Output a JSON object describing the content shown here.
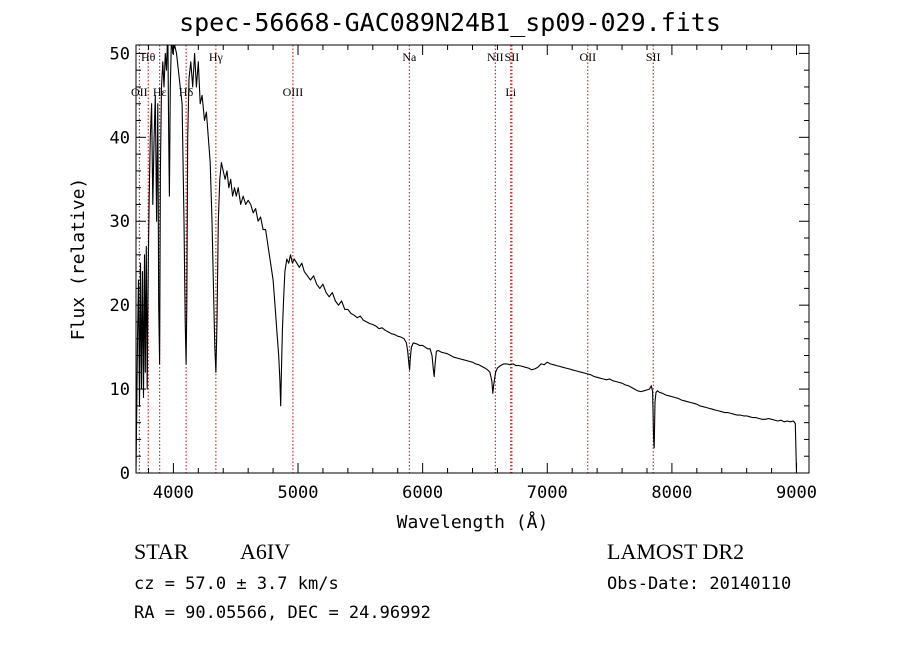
{
  "header": {
    "title": "spec-56668-GAC089N24B1_sp09-029.fits"
  },
  "info": {
    "object_class": "STAR",
    "subclass": "A6IV",
    "survey": "LAMOST DR2",
    "velocity": "cz = 57.0 ± 3.7 km/s",
    "obs_date": "Obs-Date: 20140110",
    "coords": "RA =  90.05566, DEC =  24.96992"
  },
  "chart_data": {
    "type": "line",
    "title": "spec-56668-GAC089N24B1_sp09-029.fits",
    "xlabel": "Wavelength (Å)",
    "ylabel": "Flux (relative)",
    "xlim": [
      3700,
      9100
    ],
    "ylim": [
      0,
      51
    ],
    "xticks": [
      4000,
      5000,
      6000,
      7000,
      8000,
      9000
    ],
    "yticks": [
      0,
      10,
      20,
      30,
      40,
      50
    ],
    "grid": false,
    "line_color": "#000000",
    "marker_color": "#cc0000",
    "spectral_lines": [
      {
        "label": "Hθ",
        "wavelength": 3798,
        "row": "top"
      },
      {
        "label": "OII",
        "wavelength": 3727,
        "row": "middle"
      },
      {
        "label": "Hε",
        "wavelength": 3890,
        "row": "middle"
      },
      {
        "label": "Hδ",
        "wavelength": 4102,
        "row": "middle"
      },
      {
        "label": "Hγ",
        "wavelength": 4341,
        "row": "top"
      },
      {
        "label": "OIII",
        "wavelength": 4959,
        "row": "middle"
      },
      {
        "label": "Na",
        "wavelength": 5893,
        "row": "top"
      },
      {
        "label": "NII",
        "wavelength": 6583,
        "row": "top"
      },
      {
        "label": "SII",
        "wavelength": 6716,
        "row": "top"
      },
      {
        "label": "Li",
        "wavelength": 6707,
        "row": "middle"
      },
      {
        "label": "OII",
        "wavelength": 7325,
        "row": "top"
      },
      {
        "label": "SII",
        "wavelength": 7850,
        "row": "top"
      }
    ],
    "marker_wavelengths": [
      3727,
      3798,
      3890,
      4102,
      4341,
      4959,
      5893,
      6583,
      6707,
      6716,
      7325,
      7850
    ],
    "series": [
      {
        "points": [
          [
            3700,
            0
          ],
          [
            3705,
            6
          ],
          [
            3712,
            16
          ],
          [
            3720,
            23
          ],
          [
            3728,
            8
          ],
          [
            3736,
            25
          ],
          [
            3744,
            10
          ],
          [
            3752,
            24
          ],
          [
            3760,
            9
          ],
          [
            3768,
            26
          ],
          [
            3775,
            12
          ],
          [
            3783,
            27
          ],
          [
            3790,
            10
          ],
          [
            3798,
            24
          ],
          [
            3806,
            33
          ],
          [
            3815,
            40
          ],
          [
            3825,
            44
          ],
          [
            3835,
            32
          ],
          [
            3845,
            40
          ],
          [
            3855,
            45
          ],
          [
            3865,
            30
          ],
          [
            3875,
            44
          ],
          [
            3882,
            20
          ],
          [
            3889,
            13
          ],
          [
            3896,
            36
          ],
          [
            3905,
            46
          ],
          [
            3915,
            49
          ],
          [
            3925,
            46
          ],
          [
            3935,
            50
          ],
          [
            3945,
            48
          ],
          [
            3955,
            53
          ],
          [
            3962,
            40
          ],
          [
            3968,
            33
          ],
          [
            3975,
            46
          ],
          [
            3985,
            52
          ],
          [
            3995,
            50
          ],
          [
            4010,
            51
          ],
          [
            4025,
            50
          ],
          [
            4040,
            48
          ],
          [
            4055,
            46
          ],
          [
            4070,
            44
          ],
          [
            4085,
            30
          ],
          [
            4095,
            18
          ],
          [
            4102,
            13
          ],
          [
            4108,
            20
          ],
          [
            4115,
            40
          ],
          [
            4125,
            47
          ],
          [
            4140,
            49
          ],
          [
            4155,
            46
          ],
          [
            4170,
            50
          ],
          [
            4185,
            46
          ],
          [
            4200,
            49
          ],
          [
            4215,
            44
          ],
          [
            4230,
            45
          ],
          [
            4250,
            42
          ],
          [
            4265,
            43
          ],
          [
            4280,
            40
          ],
          [
            4295,
            37
          ],
          [
            4310,
            30
          ],
          [
            4322,
            22
          ],
          [
            4332,
            15
          ],
          [
            4341,
            12
          ],
          [
            4350,
            18
          ],
          [
            4360,
            30
          ],
          [
            4372,
            35
          ],
          [
            4385,
            37
          ],
          [
            4400,
            36
          ],
          [
            4415,
            35
          ],
          [
            4430,
            36
          ],
          [
            4445,
            34
          ],
          [
            4460,
            35
          ],
          [
            4475,
            33
          ],
          [
            4490,
            34
          ],
          [
            4505,
            33
          ],
          [
            4520,
            34
          ],
          [
            4540,
            32
          ],
          [
            4560,
            33
          ],
          [
            4580,
            32
          ],
          [
            4600,
            32.5
          ],
          [
            4620,
            32
          ],
          [
            4640,
            31
          ],
          [
            4660,
            31.5
          ],
          [
            4680,
            30
          ],
          [
            4700,
            30.5
          ],
          [
            4720,
            29
          ],
          [
            4740,
            29
          ],
          [
            4760,
            27
          ],
          [
            4780,
            25
          ],
          [
            4800,
            23
          ],
          [
            4815,
            20
          ],
          [
            4830,
            17
          ],
          [
            4845,
            14
          ],
          [
            4855,
            11
          ],
          [
            4861,
            8
          ],
          [
            4867,
            12
          ],
          [
            4875,
            17
          ],
          [
            4885,
            21
          ],
          [
            4895,
            24
          ],
          [
            4910,
            25.5
          ],
          [
            4925,
            25
          ],
          [
            4940,
            26
          ],
          [
            4955,
            25
          ],
          [
            4970,
            25.5
          ],
          [
            4990,
            25
          ],
          [
            5010,
            24.5
          ],
          [
            5030,
            25
          ],
          [
            5050,
            24
          ],
          [
            5075,
            23.5
          ],
          [
            5100,
            23
          ],
          [
            5125,
            23.5
          ],
          [
            5150,
            22.5
          ],
          [
            5175,
            22
          ],
          [
            5200,
            22.5
          ],
          [
            5225,
            21.5
          ],
          [
            5250,
            21
          ],
          [
            5275,
            21.5
          ],
          [
            5300,
            20.5
          ],
          [
            5325,
            20
          ],
          [
            5350,
            20.5
          ],
          [
            5375,
            19.5
          ],
          [
            5400,
            19.5
          ],
          [
            5425,
            19
          ],
          [
            5450,
            18.8
          ],
          [
            5475,
            18.5
          ],
          [
            5500,
            18.7
          ],
          [
            5525,
            18.2
          ],
          [
            5550,
            18
          ],
          [
            5575,
            17.8
          ],
          [
            5600,
            17.7
          ],
          [
            5625,
            17.5
          ],
          [
            5650,
            17.2
          ],
          [
            5675,
            17.3
          ],
          [
            5700,
            17
          ],
          [
            5725,
            16.8
          ],
          [
            5750,
            16.6
          ],
          [
            5775,
            16.5
          ],
          [
            5800,
            16.3
          ],
          [
            5825,
            16.2
          ],
          [
            5850,
            16
          ],
          [
            5870,
            15.5
          ],
          [
            5880,
            14.5
          ],
          [
            5890,
            13
          ],
          [
            5895,
            12.3
          ],
          [
            5900,
            13.5
          ],
          [
            5910,
            15
          ],
          [
            5925,
            15.5
          ],
          [
            5950,
            15.4
          ],
          [
            5975,
            15.2
          ],
          [
            6000,
            15.2
          ],
          [
            6020,
            15
          ],
          [
            6040,
            14.8
          ],
          [
            6060,
            14.8
          ],
          [
            6075,
            14
          ],
          [
            6085,
            12.5
          ],
          [
            6093,
            11.5
          ],
          [
            6100,
            13
          ],
          [
            6110,
            14.5
          ],
          [
            6125,
            14.6
          ],
          [
            6150,
            14.4
          ],
          [
            6175,
            14.3
          ],
          [
            6200,
            14.2
          ],
          [
            6225,
            14
          ],
          [
            6250,
            13.8
          ],
          [
            6275,
            13.7
          ],
          [
            6300,
            13.6
          ],
          [
            6325,
            13.5
          ],
          [
            6350,
            13.4
          ],
          [
            6375,
            13.3
          ],
          [
            6400,
            13.2
          ],
          [
            6425,
            13
          ],
          [
            6450,
            12.9
          ],
          [
            6475,
            12.7
          ],
          [
            6500,
            12.5
          ],
          [
            6520,
            12.3
          ],
          [
            6540,
            12
          ],
          [
            6555,
            11
          ],
          [
            6563,
            9.5
          ],
          [
            6570,
            10.5
          ],
          [
            6585,
            12
          ],
          [
            6600,
            12.5
          ],
          [
            6625,
            12.8
          ],
          [
            6650,
            13
          ],
          [
            6675,
            13
          ],
          [
            6700,
            12.9
          ],
          [
            6725,
            13
          ],
          [
            6750,
            12.8
          ],
          [
            6775,
            12.8
          ],
          [
            6800,
            12.7
          ],
          [
            6825,
            12.6
          ],
          [
            6850,
            12.5
          ],
          [
            6875,
            12.3
          ],
          [
            6900,
            12.4
          ],
          [
            6925,
            12.6
          ],
          [
            6950,
            13
          ],
          [
            6975,
            12.9
          ],
          [
            7000,
            13.2
          ],
          [
            7025,
            13
          ],
          [
            7050,
            12.9
          ],
          [
            7075,
            12.8
          ],
          [
            7100,
            12.7
          ],
          [
            7125,
            12.6
          ],
          [
            7150,
            12.5
          ],
          [
            7175,
            12.4
          ],
          [
            7200,
            12.3
          ],
          [
            7225,
            12.2
          ],
          [
            7250,
            12.1
          ],
          [
            7275,
            12
          ],
          [
            7300,
            11.9
          ],
          [
            7325,
            11.8
          ],
          [
            7350,
            11.7
          ],
          [
            7375,
            11.5
          ],
          [
            7400,
            11.4
          ],
          [
            7425,
            11.3
          ],
          [
            7450,
            11.2
          ],
          [
            7475,
            11.1
          ],
          [
            7500,
            11.2
          ],
          [
            7525,
            11
          ],
          [
            7550,
            10.9
          ],
          [
            7575,
            10.8
          ],
          [
            7600,
            10.7
          ],
          [
            7625,
            10.5
          ],
          [
            7650,
            10.4
          ],
          [
            7675,
            10.2
          ],
          [
            7700,
            10
          ],
          [
            7725,
            9.8
          ],
          [
            7750,
            9.7
          ],
          [
            7775,
            9.8
          ],
          [
            7800,
            9.9
          ],
          [
            7820,
            10
          ],
          [
            7835,
            10.4
          ],
          [
            7845,
            9.7
          ],
          [
            7852,
            4.5
          ],
          [
            7858,
            3
          ],
          [
            7864,
            8.5
          ],
          [
            7872,
            9.6
          ],
          [
            7885,
            9.8
          ],
          [
            7900,
            9.6
          ],
          [
            7925,
            9.5
          ],
          [
            7950,
            9.3
          ],
          [
            7975,
            9.2
          ],
          [
            8000,
            9.1
          ],
          [
            8025,
            9
          ],
          [
            8050,
            8.9
          ],
          [
            8075,
            8.7
          ],
          [
            8100,
            8.6
          ],
          [
            8125,
            8.5
          ],
          [
            8150,
            8.4
          ],
          [
            8175,
            8.3
          ],
          [
            8200,
            8.2
          ],
          [
            8225,
            8
          ],
          [
            8250,
            7.9
          ],
          [
            8275,
            7.8
          ],
          [
            8300,
            7.7
          ],
          [
            8325,
            7.6
          ],
          [
            8350,
            7.5
          ],
          [
            8375,
            7.4
          ],
          [
            8400,
            7.3
          ],
          [
            8425,
            7.2
          ],
          [
            8450,
            7.2
          ],
          [
            8475,
            7.1
          ],
          [
            8500,
            7
          ],
          [
            8525,
            6.9
          ],
          [
            8550,
            6.9
          ],
          [
            8575,
            6.8
          ],
          [
            8600,
            6.8
          ],
          [
            8625,
            6.7
          ],
          [
            8650,
            6.6
          ],
          [
            8675,
            6.6
          ],
          [
            8700,
            6.5
          ],
          [
            8725,
            6.4
          ],
          [
            8750,
            6.4
          ],
          [
            8775,
            6.5
          ],
          [
            8800,
            6.4
          ],
          [
            8825,
            6.3
          ],
          [
            8850,
            6.2
          ],
          [
            8875,
            6.3
          ],
          [
            8900,
            6.1
          ],
          [
            8925,
            6.2
          ],
          [
            8950,
            6.1
          ],
          [
            8975,
            6.2
          ],
          [
            8990,
            5.9
          ],
          [
            9000,
            0
          ]
        ]
      }
    ]
  }
}
